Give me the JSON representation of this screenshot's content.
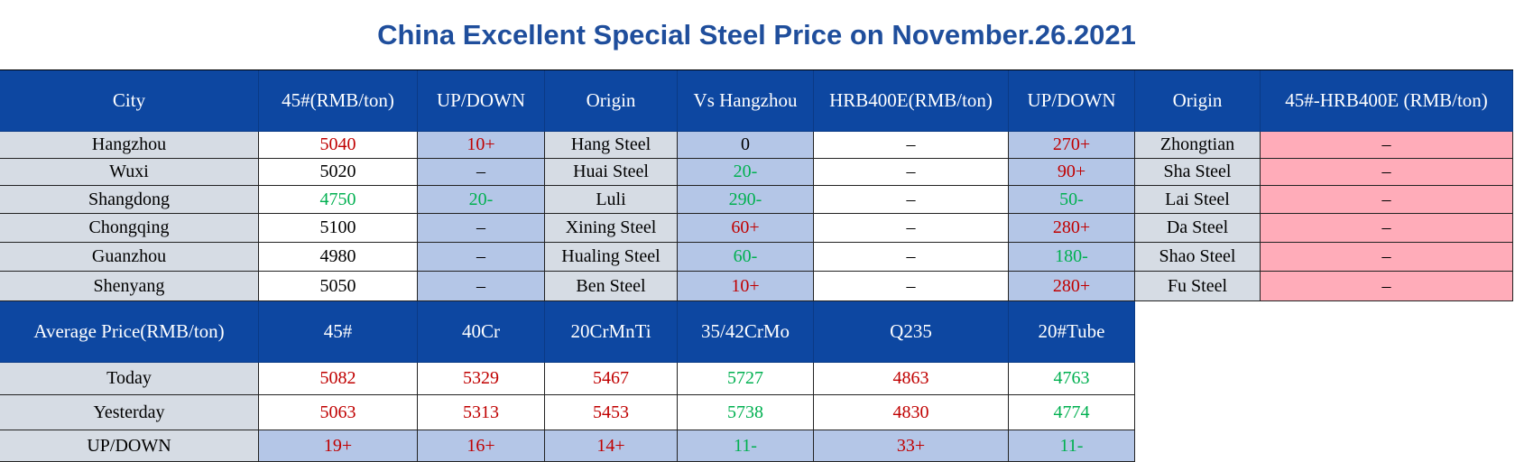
{
  "title": "China Excellent Special Steel Price on November.26.2021",
  "price_table": {
    "headers": [
      "City",
      "45#(RMB/ton)",
      "UP/DOWN",
      "Origin",
      "Vs Hangzhou",
      "HRB400E(RMB/ton)",
      "UP/DOWN",
      "Origin",
      "45#-HRB400E (RMB/ton)"
    ],
    "rows": [
      [
        "Hangzhou",
        "5040",
        "10+",
        "Hang Steel",
        "0",
        "–",
        "270+",
        "Zhongtian",
        "–"
      ],
      [
        "Wuxi",
        "5020",
        "–",
        "Huai Steel",
        "20-",
        "–",
        "90+",
        "Sha Steel",
        "–"
      ],
      [
        "Shangdong",
        "4750",
        "20-",
        "Luli",
        "290-",
        "–",
        "50-",
        "Lai Steel",
        "–"
      ],
      [
        "Chongqing",
        "5100",
        "–",
        "Xining Steel",
        "60+",
        "–",
        "280+",
        "Da Steel",
        "–"
      ],
      [
        "Guanzhou",
        "4980",
        "–",
        "Hualing Steel",
        "60-",
        "–",
        "180-",
        "Shao Steel",
        "–"
      ],
      [
        "Shenyang",
        "5050",
        "–",
        "Ben Steel",
        "10+",
        "–",
        "280+",
        "Fu Steel",
        "–"
      ]
    ],
    "text_colors": [
      [
        "#000",
        "#c00000",
        "#c00000",
        "#000",
        "#000",
        "#000",
        "#c00000",
        "#000",
        "#000"
      ],
      [
        "#000",
        "#000",
        "#000",
        "#000",
        "#00b050",
        "#000",
        "#c00000",
        "#000",
        "#000"
      ],
      [
        "#000",
        "#00b050",
        "#00b050",
        "#000",
        "#00b050",
        "#000",
        "#00b050",
        "#000",
        "#000"
      ],
      [
        "#000",
        "#000",
        "#000",
        "#000",
        "#c00000",
        "#000",
        "#c00000",
        "#000",
        "#000"
      ],
      [
        "#000",
        "#000",
        "#000",
        "#000",
        "#00b050",
        "#000",
        "#00b050",
        "#000",
        "#000"
      ],
      [
        "#000",
        "#000",
        "#000",
        "#000",
        "#c00000",
        "#000",
        "#c00000",
        "#000",
        "#000"
      ]
    ]
  },
  "average_table": {
    "headers": [
      "Average Price(RMB/ton)",
      "45#",
      "40Cr",
      "20CrMnTi",
      "35/42CrMo",
      "Q235",
      "20#Tube"
    ],
    "rows": [
      [
        "Today",
        "5082",
        "5329",
        "5467",
        "5727",
        "4863",
        "4763"
      ],
      [
        "Yesterday",
        "5063",
        "5313",
        "5453",
        "5738",
        "4830",
        "4774"
      ],
      [
        "UP/DOWN",
        "19+",
        "16+",
        "14+",
        "11-",
        "33+",
        "11-"
      ]
    ],
    "text_colors": [
      [
        "#000",
        "#c00000",
        "#c00000",
        "#c00000",
        "#00b050",
        "#c00000",
        "#00b050"
      ],
      [
        "#000",
        "#c00000",
        "#c00000",
        "#c00000",
        "#00b050",
        "#c00000",
        "#00b050"
      ],
      [
        "#000",
        "#c00000",
        "#c00000",
        "#c00000",
        "#00b050",
        "#c00000",
        "#00b050"
      ]
    ]
  }
}
